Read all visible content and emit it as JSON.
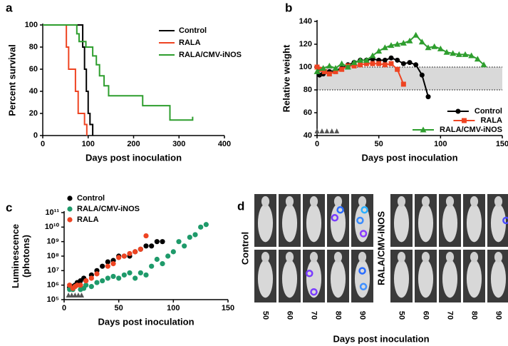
{
  "chart_data": [
    {
      "type": "step",
      "panel": "a",
      "xlabel": "Days post inoculation",
      "ylabel": [
        "Percent survival"
      ],
      "xlim": [
        0,
        400
      ],
      "xticks": [
        0,
        100,
        200,
        300,
        400
      ],
      "ylim": [
        0,
        100
      ],
      "yticks": [
        0,
        20,
        40,
        60,
        80,
        100
      ],
      "legend": "upper right",
      "series": [
        {
          "name": "Control",
          "color": "#000000",
          "x": [
            0,
            88,
            92,
            96,
            100,
            104,
            110
          ],
          "values": [
            100,
            80,
            60,
            40,
            20,
            10,
            0
          ]
        },
        {
          "name": "RALA",
          "color": "#ee4422",
          "x": [
            0,
            52,
            57,
            72,
            78,
            92,
            97
          ],
          "values": [
            100,
            80,
            60,
            40,
            20,
            10,
            0
          ]
        },
        {
          "name": "RALA/CMV-iNOS",
          "color": "#2e9e2e",
          "x": [
            0,
            75,
            80,
            95,
            110,
            118,
            125,
            135,
            145,
            220,
            280,
            330
          ],
          "values": [
            100,
            92,
            85,
            80,
            72,
            64,
            54,
            45,
            36,
            27,
            14,
            17
          ]
        }
      ]
    },
    {
      "type": "line",
      "panel": "b",
      "xlabel": "Days post inoculation",
      "ylabel": [
        "Relative weight"
      ],
      "xlim": [
        0,
        150
      ],
      "xticks": [
        0,
        50,
        100,
        150
      ],
      "ylim": [
        40,
        140
      ],
      "yticks": [
        40,
        60,
        80,
        100,
        120,
        140
      ],
      "legend": "lower right",
      "reference_band": [
        80,
        100
      ],
      "treatment_days": [
        0,
        4,
        8,
        12,
        16
      ],
      "series": [
        {
          "name": "Control",
          "color": "#000000",
          "marker": "circle",
          "x": [
            0,
            2,
            5,
            10,
            15,
            20,
            25,
            30,
            35,
            40,
            45,
            50,
            55,
            60,
            65,
            70,
            75,
            80,
            85,
            90
          ],
          "values": [
            100,
            93,
            94,
            96,
            97,
            99,
            102,
            104,
            106,
            106,
            107,
            106,
            106,
            108,
            106,
            103,
            104,
            102,
            93,
            74
          ]
        },
        {
          "name": "RALA",
          "color": "#ee4422",
          "marker": "square",
          "x": [
            0,
            3,
            6,
            10,
            15,
            20,
            25,
            30,
            35,
            40,
            45,
            50,
            55,
            60,
            65,
            70
          ],
          "values": [
            100,
            98,
            96,
            94,
            96,
            98,
            101,
            101,
            102,
            103,
            103,
            103,
            102,
            103,
            98,
            85
          ]
        },
        {
          "name": "RALA/CMV-iNOS",
          "color": "#2e9e2e",
          "marker": "triangle",
          "x": [
            0,
            5,
            10,
            15,
            20,
            25,
            30,
            35,
            40,
            45,
            50,
            55,
            60,
            65,
            70,
            75,
            80,
            85,
            90,
            95,
            100,
            105,
            110,
            115,
            120,
            125,
            130,
            135
          ],
          "values": [
            96,
            99,
            101,
            99,
            103,
            100,
            104,
            106,
            106,
            110,
            114,
            117,
            119,
            120,
            121,
            123,
            128,
            122,
            117,
            118,
            116,
            113,
            112,
            111,
            111,
            110,
            107,
            102
          ]
        }
      ]
    },
    {
      "type": "scatter",
      "panel": "c",
      "xlabel": "Days post inoculation",
      "ylabel": [
        "Luminescence",
        "(photons)"
      ],
      "xlim": [
        0,
        150
      ],
      "xticks": [
        0,
        50,
        100,
        150
      ],
      "ylim": [
        100000,
        100000000000
      ],
      "log_y": true,
      "yticks": [
        {
          "value": 100000,
          "label": "10⁵"
        },
        {
          "value": 1000000,
          "label": "10⁶"
        },
        {
          "value": 10000000,
          "label": "10⁷"
        },
        {
          "value": 100000000,
          "label": "10⁸"
        },
        {
          "value": 1000000000,
          "label": "10⁹"
        },
        {
          "value": 10000000000,
          "label": "10¹⁰"
        },
        {
          "value": 100000000000,
          "label": "10¹¹"
        }
      ],
      "legend": "upper left",
      "treatment_days": [
        4,
        7,
        10,
        13,
        16
      ],
      "series": [
        {
          "name": "Control",
          "color": "#000000",
          "x": [
            5,
            8,
            10,
            12,
            15,
            18,
            20,
            25,
            30,
            35,
            40,
            45,
            50,
            55,
            60,
            65,
            70,
            75,
            80,
            85,
            90
          ],
          "values": [
            700000,
            800000,
            1000000,
            1500000,
            2000000,
            3000000,
            2000000,
            5000000,
            10000000,
            20000000,
            40000000,
            50000000,
            100000000,
            100000000,
            100000000,
            200000000,
            300000000,
            500000000,
            500000000,
            1000000000,
            1000000000
          ]
        },
        {
          "name": "RALA/CMV-iNOS",
          "color": "#1e9a6a",
          "x": [
            5,
            8,
            10,
            15,
            18,
            20,
            25,
            30,
            35,
            40,
            45,
            50,
            55,
            60,
            65,
            70,
            75,
            80,
            85,
            90,
            95,
            100,
            105,
            110,
            115,
            120,
            125,
            130
          ],
          "values": [
            500000,
            500000,
            800000,
            500000,
            600000,
            1000000,
            800000,
            1500000,
            2000000,
            3000000,
            4000000,
            3000000,
            5000000,
            7000000,
            3000000,
            7000000,
            5000000,
            20000000,
            60000000,
            30000000,
            100000000,
            200000000,
            1000000000,
            500000000,
            2000000000,
            3000000000,
            10000000000,
            15000000000
          ]
        },
        {
          "name": "RALA",
          "color": "#ee4422",
          "x": [
            5,
            8,
            10,
            12,
            15,
            20,
            25,
            30,
            40,
            45,
            50,
            55,
            60,
            65,
            70,
            75
          ],
          "values": [
            1000000,
            600000,
            800000,
            1000000,
            1000000,
            2000000,
            3000000,
            6000000,
            20000000,
            30000000,
            80000000,
            100000000,
            150000000,
            200000000,
            300000000,
            2500000000
          ]
        }
      ]
    },
    {
      "type": "image_grid",
      "panel": "d",
      "xlabel": "Days post inoculation",
      "row_labels": [
        "Control",
        "RALA/CMV-iNOS"
      ],
      "columns": [
        50,
        60,
        70,
        80,
        90
      ]
    }
  ]
}
